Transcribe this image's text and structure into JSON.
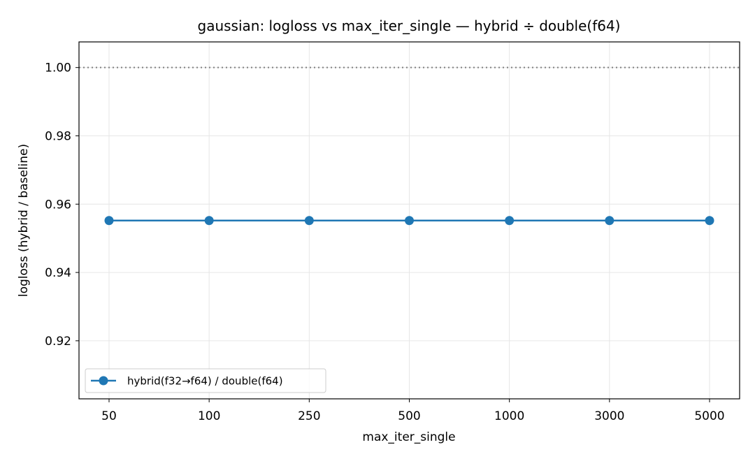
{
  "chart_data": {
    "type": "line",
    "title": "gaussian: logloss vs max_iter_single — hybrid ÷ double(f64)",
    "xlabel": "max_iter_single",
    "ylabel": "logloss (hybrid / baseline)",
    "categories": [
      "50",
      "100",
      "250",
      "500",
      "1000",
      "3000",
      "5000"
    ],
    "series": [
      {
        "name": "hybrid(f32→f64) / double(f64)",
        "values": [
          0.9552,
          0.9552,
          0.9552,
          0.9552,
          0.9552,
          0.9552,
          0.9552
        ],
        "color": "#1f77b4"
      }
    ],
    "reference_line": {
      "y": 1.0,
      "style": "dotted",
      "color": "#808080"
    },
    "ylim": [
      0.903,
      1.0075
    ],
    "yticks": [
      0.92,
      0.94,
      0.96,
      0.98,
      1.0
    ],
    "ytick_labels": [
      "0.92",
      "0.94",
      "0.96",
      "0.98",
      "1.00"
    ],
    "grid": true,
    "legend_position": "lower-left"
  }
}
